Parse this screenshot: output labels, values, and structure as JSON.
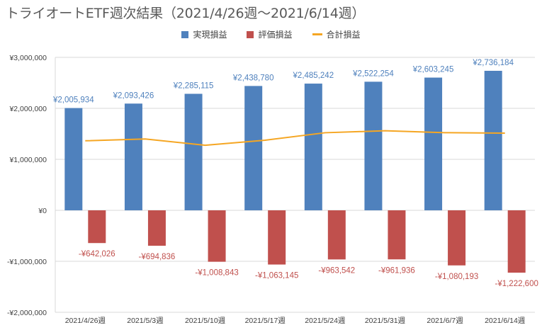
{
  "chart_data": {
    "type": "bar",
    "title": "トライオートETF週次結果（2021/4/26週～2021/6/14週）",
    "categories": [
      "2021/4/26週",
      "2021/5/3週",
      "2021/5/10週",
      "2021/5/17週",
      "2021/5/24週",
      "2021/5/31週",
      "2021/6/7週",
      "2021/6/14週"
    ],
    "series": [
      {
        "name": "実現損益",
        "kind": "bar",
        "color": "#4f81bd",
        "values": [
          2005934,
          2093426,
          2285115,
          2438780,
          2485242,
          2522254,
          2603245,
          2736184
        ],
        "labels": [
          "¥2,005,934",
          "¥2,093,426",
          "¥2,285,115",
          "¥2,438,780",
          "¥2,485,242",
          "¥2,522,254",
          "¥2,603,245",
          "¥2,736,184"
        ]
      },
      {
        "name": "評価損益",
        "kind": "bar",
        "color": "#c0504d",
        "values": [
          -642026,
          -694836,
          -1008843,
          -1063145,
          -963542,
          -961936,
          -1080193,
          -1222600
        ],
        "labels": [
          "-¥642,026",
          "-¥694,836",
          "-¥1,008,843",
          "-¥1,063,145",
          "-¥963,542",
          "-¥961,936",
          "-¥1,080,193",
          "-¥1,222,600"
        ]
      },
      {
        "name": "合計損益",
        "kind": "line",
        "color": "#f5a623",
        "values": [
          1363908,
          1398590,
          1276272,
          1375635,
          1521700,
          1560318,
          1523052,
          1513584
        ]
      }
    ],
    "ylim": [
      -2000000,
      3000000
    ],
    "yticks": [
      3000000,
      2000000,
      1000000,
      0,
      -1000000,
      -2000000
    ],
    "ytick_labels": [
      "¥3,000,000",
      "¥2,000,000",
      "¥1,000,000",
      "¥0",
      "-¥1,000,000",
      "-¥2,000,000"
    ],
    "grid": true,
    "legend_position": "top-center",
    "label_colors": {
      "positive": "#4f81bd",
      "negative": "#c0504d",
      "axis": "#404040",
      "grid": "#d9d9d9"
    }
  }
}
